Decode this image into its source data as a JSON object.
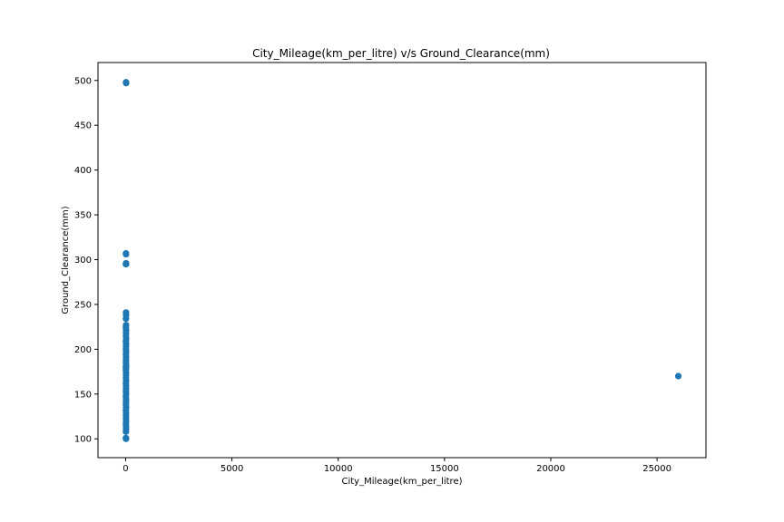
{
  "chart_data": {
    "type": "scatter",
    "title": "City_Mileage(km_per_litre) v/s Ground_Clearance(mm)",
    "xlabel": "City_Mileage(km_per_litre)",
    "ylabel": "Ground_Clearance(mm)",
    "xlim": [
      -1300,
      27300
    ],
    "ylim": [
      79,
      520
    ],
    "xticks": [
      0,
      5000,
      10000,
      15000,
      20000,
      25000
    ],
    "yticks": [
      100,
      150,
      200,
      250,
      300,
      350,
      400,
      450,
      500
    ],
    "grid": false,
    "marker_color": "#1f77b4",
    "points": [
      [
        20,
        498
      ],
      [
        22,
        497
      ],
      [
        15,
        307
      ],
      [
        18,
        306
      ],
      [
        20,
        296
      ],
      [
        12,
        295
      ],
      [
        25,
        295
      ],
      [
        18,
        241
      ],
      [
        22,
        238
      ],
      [
        15,
        234
      ],
      [
        20,
        227
      ],
      [
        12,
        224
      ],
      [
        22,
        221
      ],
      [
        18,
        218
      ],
      [
        15,
        215
      ],
      [
        25,
        212
      ],
      [
        12,
        209
      ],
      [
        20,
        206
      ],
      [
        18,
        203
      ],
      [
        15,
        200
      ],
      [
        22,
        197
      ],
      [
        12,
        194
      ],
      [
        20,
        191
      ],
      [
        18,
        188
      ],
      [
        15,
        185
      ],
      [
        22,
        182
      ],
      [
        10,
        180
      ],
      [
        25,
        180
      ],
      [
        12,
        177
      ],
      [
        20,
        174
      ],
      [
        18,
        171
      ],
      [
        15,
        168
      ],
      [
        22,
        165
      ],
      [
        12,
        162
      ],
      [
        20,
        159
      ],
      [
        18,
        156
      ],
      [
        15,
        153
      ],
      [
        22,
        150
      ],
      [
        12,
        147
      ],
      [
        20,
        144
      ],
      [
        18,
        141
      ],
      [
        15,
        138
      ],
      [
        22,
        135
      ],
      [
        12,
        132
      ],
      [
        20,
        129
      ],
      [
        18,
        126
      ],
      [
        15,
        123
      ],
      [
        22,
        120
      ],
      [
        12,
        117
      ],
      [
        20,
        114
      ],
      [
        18,
        111
      ],
      [
        15,
        108
      ],
      [
        12,
        101
      ],
      [
        18,
        100
      ],
      [
        26000,
        170
      ]
    ]
  }
}
